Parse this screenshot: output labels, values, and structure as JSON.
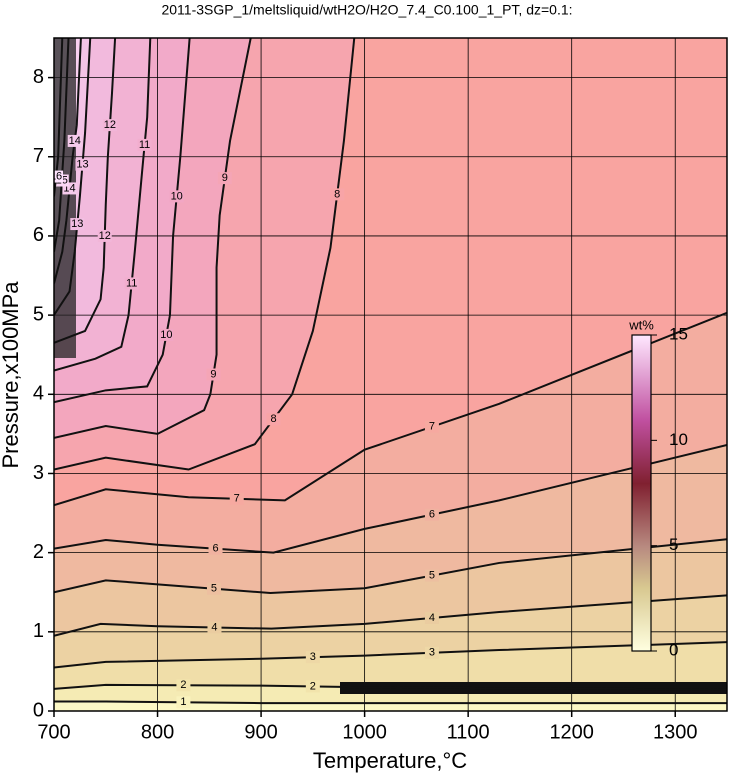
{
  "chart_data": {
    "type": "contour",
    "title": "2011-3SGP_1/meltsliquid/wtH2O/H2O_7.4_C0.100_1_PT, dz=0.1:",
    "x_label": "Temperature,°C",
    "y_label": "Pressure,x100MPa",
    "xlim": [
      700,
      1350
    ],
    "xticks": [
      700,
      800,
      900,
      1000,
      1100,
      1200,
      1300
    ],
    "ylim": [
      0,
      8.5
    ],
    "yticks": [
      0,
      1,
      2,
      3,
      4,
      5,
      6,
      7,
      8
    ],
    "grid": true,
    "contours": [
      {
        "level": 1,
        "x": [
          700,
          750,
          900,
          1350
        ],
        "y": [
          0.12,
          0.12,
          0.1,
          0.1
        ]
      },
      {
        "level": 2,
        "x": [
          700,
          750,
          900,
          1000,
          1350
        ],
        "y": [
          0.28,
          0.33,
          0.32,
          0.3,
          0.27
        ]
      },
      {
        "level": 3,
        "x": [
          700,
          750,
          900,
          1000,
          1130,
          1350
        ],
        "y": [
          0.55,
          0.62,
          0.66,
          0.7,
          0.77,
          0.87
        ]
      },
      {
        "level": 4,
        "x": [
          700,
          745,
          800,
          910,
          1000,
          1130,
          1350
        ],
        "y": [
          0.95,
          1.1,
          1.07,
          1.04,
          1.1,
          1.25,
          1.46
        ]
      },
      {
        "level": 5,
        "x": [
          700,
          750,
          800,
          909,
          1000,
          1130,
          1350
        ],
        "y": [
          1.5,
          1.65,
          1.6,
          1.49,
          1.55,
          1.87,
          2.17
        ]
      },
      {
        "level": 6,
        "x": [
          700,
          750,
          800,
          912,
          1000,
          1130,
          1350
        ],
        "y": [
          2.05,
          2.16,
          2.1,
          2.0,
          2.3,
          2.66,
          3.36
        ]
      },
      {
        "level": 7,
        "x": [
          700,
          750,
          830,
          923,
          1000,
          1130,
          1350
        ],
        "y": [
          2.6,
          2.8,
          2.7,
          2.66,
          3.3,
          3.88,
          5.03
        ]
      },
      {
        "level": 8,
        "x": [
          700,
          750,
          830,
          894,
          930,
          950,
          967,
          980,
          990
        ],
        "y": [
          3.05,
          3.2,
          3.05,
          3.37,
          4.0,
          4.8,
          5.85,
          7.2,
          8.5
        ]
      },
      {
        "level": 9,
        "x": [
          700,
          750,
          800,
          845,
          851,
          857,
          857,
          860,
          870,
          890
        ],
        "y": [
          3.45,
          3.6,
          3.5,
          3.8,
          4.0,
          4.5,
          5.6,
          6.26,
          7.2,
          8.5
        ]
      },
      {
        "level": 10,
        "x": [
          700,
          750,
          790,
          805,
          812,
          815,
          822,
          831
        ],
        "y": [
          3.9,
          4.05,
          4.1,
          4.5,
          5.0,
          6.0,
          7.0,
          8.5
        ]
      },
      {
        "level": 11,
        "x": [
          700,
          740,
          765,
          772,
          778,
          785,
          790,
          793
        ],
        "y": [
          4.3,
          4.45,
          4.6,
          5.0,
          5.8,
          6.8,
          7.5,
          8.5
        ]
      },
      {
        "level": 12,
        "x": [
          700,
          730,
          745,
          748,
          750,
          752,
          756,
          759
        ],
        "y": [
          4.65,
          4.8,
          5.2,
          5.6,
          6.4,
          7.0,
          7.8,
          8.5
        ]
      },
      {
        "level": 13,
        "x": [
          700,
          715,
          720,
          725,
          730,
          735
        ],
        "y": [
          5.0,
          5.3,
          5.8,
          6.5,
          7.3,
          8.5
        ]
      },
      {
        "level": 14,
        "x": [
          700,
          708,
          712,
          718,
          722,
          726
        ],
        "y": [
          5.4,
          5.8,
          6.2,
          7.0,
          7.4,
          8.5
        ]
      },
      {
        "level": 15,
        "x": [
          700,
          705,
          710,
          714
        ],
        "y": [
          5.8,
          6.2,
          7.2,
          8.5
        ]
      },
      {
        "level": 16,
        "x": [
          700,
          704,
          708
        ],
        "y": [
          6.5,
          7.0,
          8.5
        ]
      }
    ],
    "colorbar": {
      "label": "wt%",
      "lim": [
        0,
        15
      ],
      "ticks": [
        0,
        5,
        10,
        15
      ]
    }
  }
}
